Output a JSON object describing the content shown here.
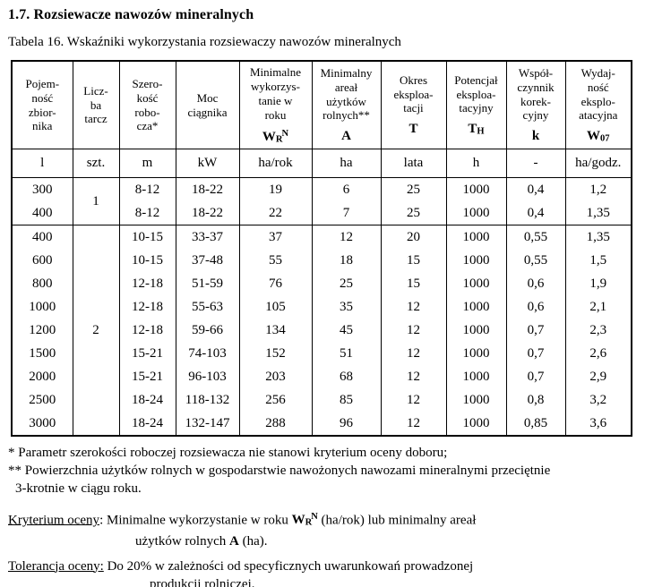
{
  "page": {
    "title": "1.7. Rozsiewacze nawozów mineralnych",
    "caption": "Tabela 16. Wskaźniki wykorzystania rozsiewaczy nawozów mineralnych"
  },
  "table": {
    "columns": [
      {
        "name": "Pojem-\nność\nzbior-\nnika",
        "unit": "l"
      },
      {
        "name": "Licz-\nba\ntarcz",
        "unit": "szt."
      },
      {
        "name": "Szero-\nkość\nrobo-\ncza*",
        "unit": "m"
      },
      {
        "name": "Moc\nciągnika",
        "unit": "kW"
      },
      {
        "name": "Minimalne\nwykorzys-\ntanie w\nroku",
        "symbol": {
          "base": "W",
          "sub": "R",
          "sup": "N"
        },
        "unit": "ha/rok"
      },
      {
        "name": "Minimalny\nareał\nużytków\nrolnych**",
        "symbol": {
          "base": "A"
        },
        "unit": "ha"
      },
      {
        "name": "Okres\neksploa-\ntacji",
        "symbol": {
          "base": "T"
        },
        "unit": "lata"
      },
      {
        "name": "Potencjał\neksploa-\ntacyjny",
        "symbol": {
          "base": "T",
          "sub": "H"
        },
        "unit": "h"
      },
      {
        "name": "Współ-\nczynnik\nkorek-\ncyjny",
        "symbol": {
          "base": "k"
        },
        "unit": "-"
      },
      {
        "name": "Wydaj-\nność\neksplo-\natacyjna",
        "symbol": {
          "base": "W",
          "sub": "07"
        },
        "unit": "ha/godz."
      }
    ],
    "groups": [
      {
        "tarcze": "1",
        "rows": [
          [
            "300",
            "8-12",
            "18-22",
            "19",
            "6",
            "25",
            "1000",
            "0,4",
            "1,2"
          ],
          [
            "400",
            "8-12",
            "18-22",
            "22",
            "7",
            "25",
            "1000",
            "0,4",
            "1,35"
          ]
        ]
      },
      {
        "tarcze": "2",
        "rows": [
          [
            "400",
            "10-15",
            "33-37",
            "37",
            "12",
            "20",
            "1000",
            "0,55",
            "1,35"
          ],
          [
            "600",
            "10-15",
            "37-48",
            "55",
            "18",
            "15",
            "1000",
            "0,55",
            "1,5"
          ],
          [
            "800",
            "12-18",
            "51-59",
            "76",
            "25",
            "15",
            "1000",
            "0,6",
            "1,9"
          ],
          [
            "1000",
            "12-18",
            "55-63",
            "105",
            "35",
            "12",
            "1000",
            "0,6",
            "2,1"
          ],
          [
            "1200",
            "12-18",
            "59-66",
            "134",
            "45",
            "12",
            "1000",
            "0,7",
            "2,3"
          ],
          [
            "1500",
            "15-21",
            "74-103",
            "152",
            "51",
            "12",
            "1000",
            "0,7",
            "2,6"
          ],
          [
            "2000",
            "15-21",
            "96-103",
            "203",
            "68",
            "12",
            "1000",
            "0,7",
            "2,9"
          ],
          [
            "2500",
            "18-24",
            "118-132",
            "256",
            "85",
            "12",
            "1000",
            "0,8",
            "3,2"
          ],
          [
            "3000",
            "18-24",
            "132-147",
            "288",
            "96",
            "12",
            "1000",
            "0,85",
            "3,6"
          ]
        ]
      }
    ]
  },
  "footnotes": {
    "line1": "* Parametr szerokości roboczej rozsiewacza nie stanowi kryterium oceny doboru;",
    "line2": "** Powierzchnia użytków rolnych w gospodarstwie nawożonych nawozami mineralnymi przeciętnie",
    "line3": "3-krotnie w ciągu roku."
  },
  "kryterium": {
    "label": "Kryterium oceny",
    "after_label": ": ",
    "t1": "Minimalne wykorzystanie w roku ",
    "sym1": {
      "base": "W",
      "sub": "R",
      "sup": "N"
    },
    "t2": " (ha/rok) lub minimalny areał",
    "t3": "użytków rolnych ",
    "sym2": "A",
    "t4": " (ha)."
  },
  "tolerancja": {
    "label": "Tolerancja oceny:",
    "t1": " Do 20% w zależności od specyficznych uwarunkowań prowadzonej",
    "t2": "produkcji rolniczej."
  }
}
